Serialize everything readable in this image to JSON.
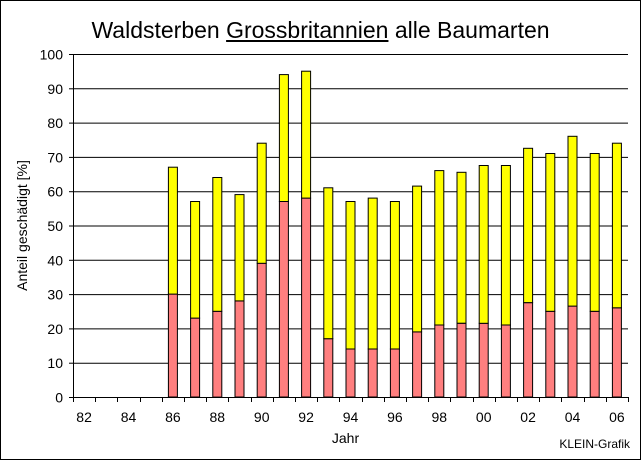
{
  "chart_data": {
    "type": "bar",
    "stacked": true,
    "title_parts": [
      "Waldsterben ",
      "Grossbritannien",
      " alle Baumarten"
    ],
    "xlabel": "Jahr",
    "ylabel": "Anteil geschädigt [%]",
    "ylim": [
      0,
      100
    ],
    "yticks": [
      0,
      10,
      20,
      30,
      40,
      50,
      60,
      70,
      80,
      90,
      100
    ],
    "grid": true,
    "categories": [
      "82",
      "83",
      "84",
      "85",
      "86",
      "87",
      "88",
      "89",
      "90",
      "91",
      "92",
      "93",
      "94",
      "95",
      "96",
      "97",
      "98",
      "99",
      "00",
      "01",
      "02",
      "03",
      "04",
      "05",
      "06"
    ],
    "xtick_labels": [
      "82",
      "84",
      "86",
      "88",
      "90",
      "92",
      "94",
      "96",
      "98",
      "00",
      "02",
      "04",
      "06"
    ],
    "series": [
      {
        "color": "#ff7f7f",
        "values": [
          null,
          null,
          null,
          null,
          30,
          23,
          25,
          28,
          39,
          57,
          58,
          17,
          14,
          14,
          14,
          19,
          21,
          21.5,
          21.5,
          21,
          27.5,
          25,
          26.5,
          25,
          26
        ]
      },
      {
        "color": "#ffff00",
        "values": [
          null,
          null,
          null,
          null,
          37,
          34,
          39,
          31,
          35,
          37,
          37,
          44,
          43,
          44,
          43,
          42.5,
          45,
          44,
          46,
          46.5,
          45,
          46,
          49.5,
          46,
          48
        ]
      }
    ],
    "credit": "KLEIN-Grafik"
  }
}
